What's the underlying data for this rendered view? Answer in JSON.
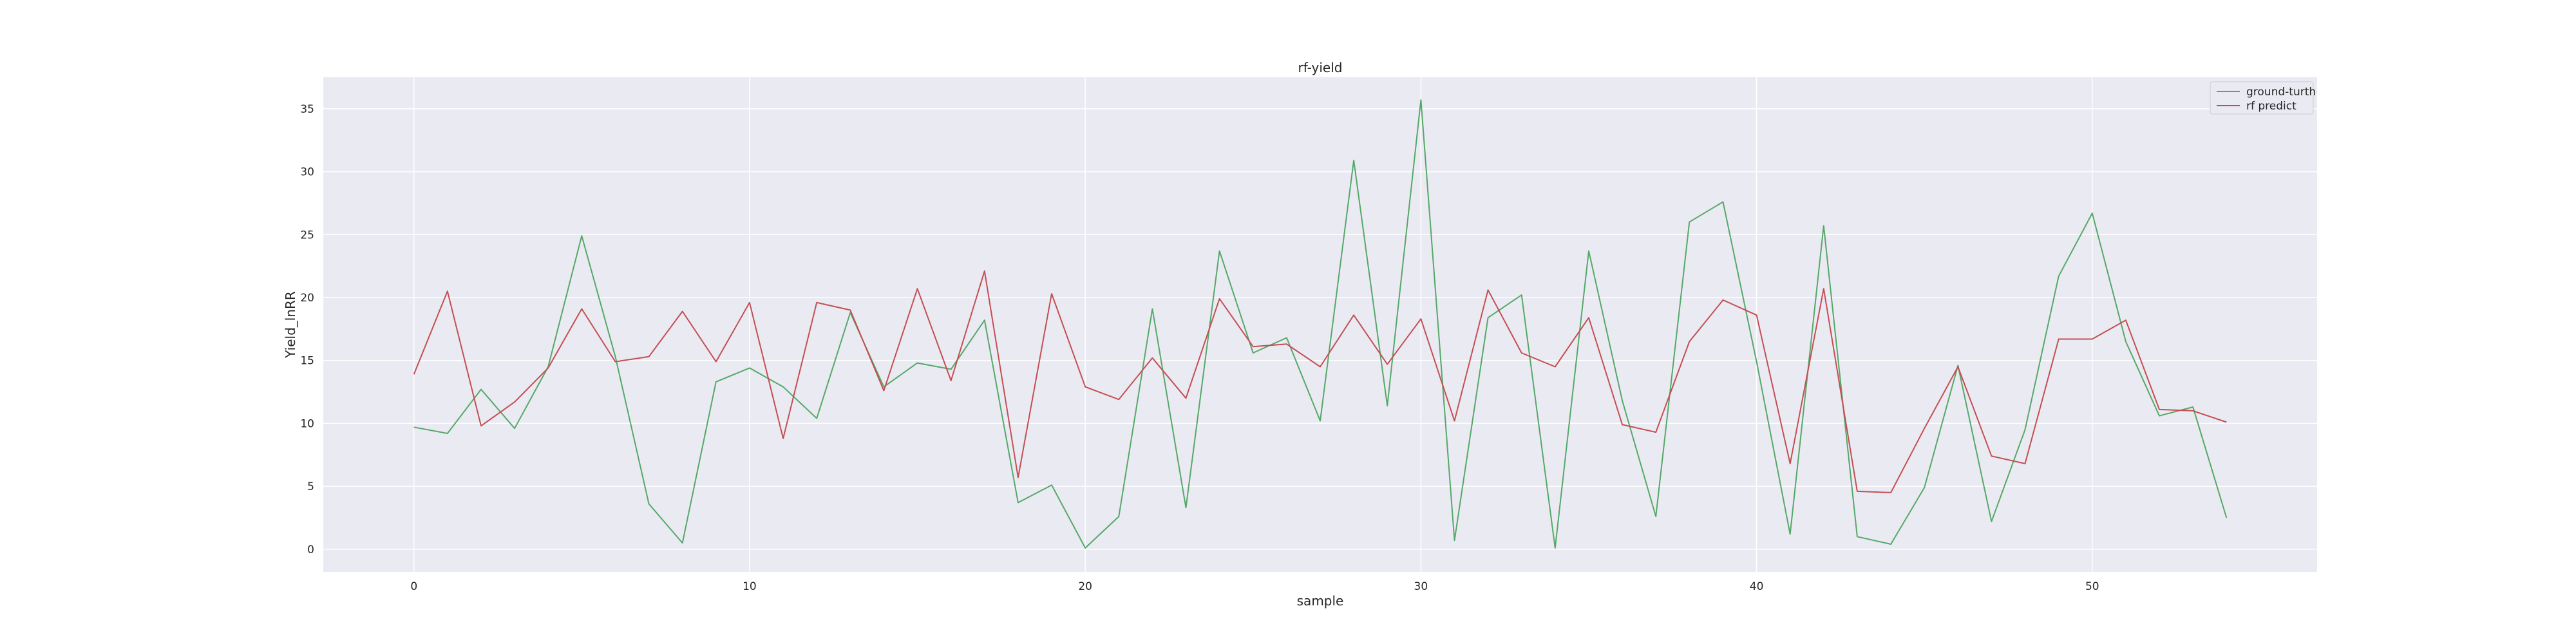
{
  "chart_data": {
    "type": "line",
    "title": "rf-yield",
    "xlabel": "sample",
    "ylabel": "Yield_lnRR",
    "xlim": [
      -2.7,
      56.7
    ],
    "ylim": [
      -1.8,
      37.5
    ],
    "xticks": [
      0,
      10,
      20,
      30,
      40,
      50
    ],
    "yticks": [
      0,
      5,
      10,
      15,
      20,
      25,
      30,
      35
    ],
    "grid": true,
    "legend_position": "top-right",
    "series": [
      {
        "name": "ground-turth",
        "color": "#55a868",
        "values": [
          9.7,
          9.2,
          12.7,
          9.6,
          14.5,
          24.9,
          15.3,
          3.6,
          0.5,
          13.3,
          14.4,
          12.9,
          10.4,
          18.8,
          12.9,
          14.8,
          14.3,
          18.2,
          3.7,
          5.1,
          0.1,
          2.6,
          19.1,
          3.3,
          23.7,
          15.6,
          16.8,
          10.2,
          30.9,
          11.4,
          35.7,
          0.7,
          18.4,
          20.2,
          0.1,
          23.7,
          11.8,
          2.6,
          26.0,
          27.6,
          14.9,
          1.2,
          25.7,
          1.0,
          0.4,
          4.9,
          14.6,
          2.2,
          9.5,
          21.7,
          26.7,
          16.5,
          10.6,
          11.3,
          2.5
        ]
      },
      {
        "name": "rf predict",
        "color": "#c44e52",
        "values": [
          13.9,
          20.5,
          9.8,
          11.7,
          14.4,
          19.1,
          14.9,
          15.3,
          18.9,
          14.9,
          19.6,
          8.8,
          19.6,
          19.0,
          12.6,
          20.7,
          13.4,
          22.1,
          5.7,
          20.3,
          12.9,
          11.9,
          15.2,
          12.0,
          19.9,
          16.1,
          16.3,
          14.5,
          18.6,
          14.7,
          18.3,
          10.2,
          20.6,
          15.6,
          14.5,
          18.4,
          9.9,
          9.3,
          16.5,
          19.8,
          18.6,
          6.8,
          20.7,
          4.6,
          4.5,
          9.6,
          14.5,
          7.4,
          6.8,
          16.7,
          16.7,
          18.2,
          11.1,
          11.0,
          10.1
        ]
      }
    ]
  }
}
